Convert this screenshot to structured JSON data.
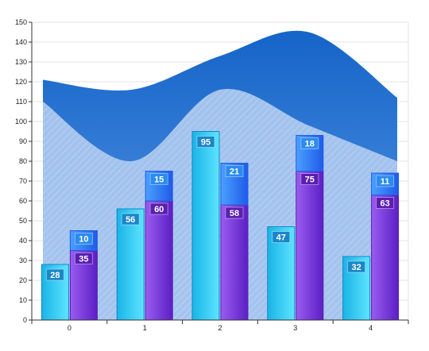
{
  "chart_data": {
    "type": "bar",
    "title": "",
    "xlabel": "",
    "ylabel": "",
    "ylim": [
      0,
      150
    ],
    "y_ticks": [
      0,
      10,
      20,
      30,
      40,
      50,
      60,
      70,
      80,
      90,
      100,
      110,
      120,
      130,
      140,
      150
    ],
    "categories": [
      "0",
      "1",
      "2",
      "3",
      "4"
    ],
    "grid": true,
    "legend": "none",
    "bars": [
      {
        "name": "",
        "values": [
          28,
          56,
          95,
          47,
          32
        ],
        "colors": [
          "#19b4e6",
          "#5ee4ff"
        ],
        "label_bg": "#1a86c8"
      },
      {
        "name": "",
        "stack": [
          {
            "values": [
              35,
              60,
              58,
              75,
              63
            ],
            "colors": [
              "#5b1fc4",
              "#9a5cf0"
            ],
            "label_bg": "#5a1fb0"
          },
          {
            "values": [
              10,
              15,
              21,
              18,
              11
            ],
            "colors": [
              "#1f5be8",
              "#4aa0ff"
            ],
            "label_bg": "#2b8bf0"
          }
        ]
      }
    ],
    "areas": [
      {
        "name": "",
        "values": [
          121,
          116,
          133,
          145,
          112
        ],
        "color": "#1a6fd0"
      },
      {
        "name": "",
        "values": [
          110,
          80,
          116,
          98,
          80
        ],
        "color": "#a9c9ef"
      }
    ]
  }
}
